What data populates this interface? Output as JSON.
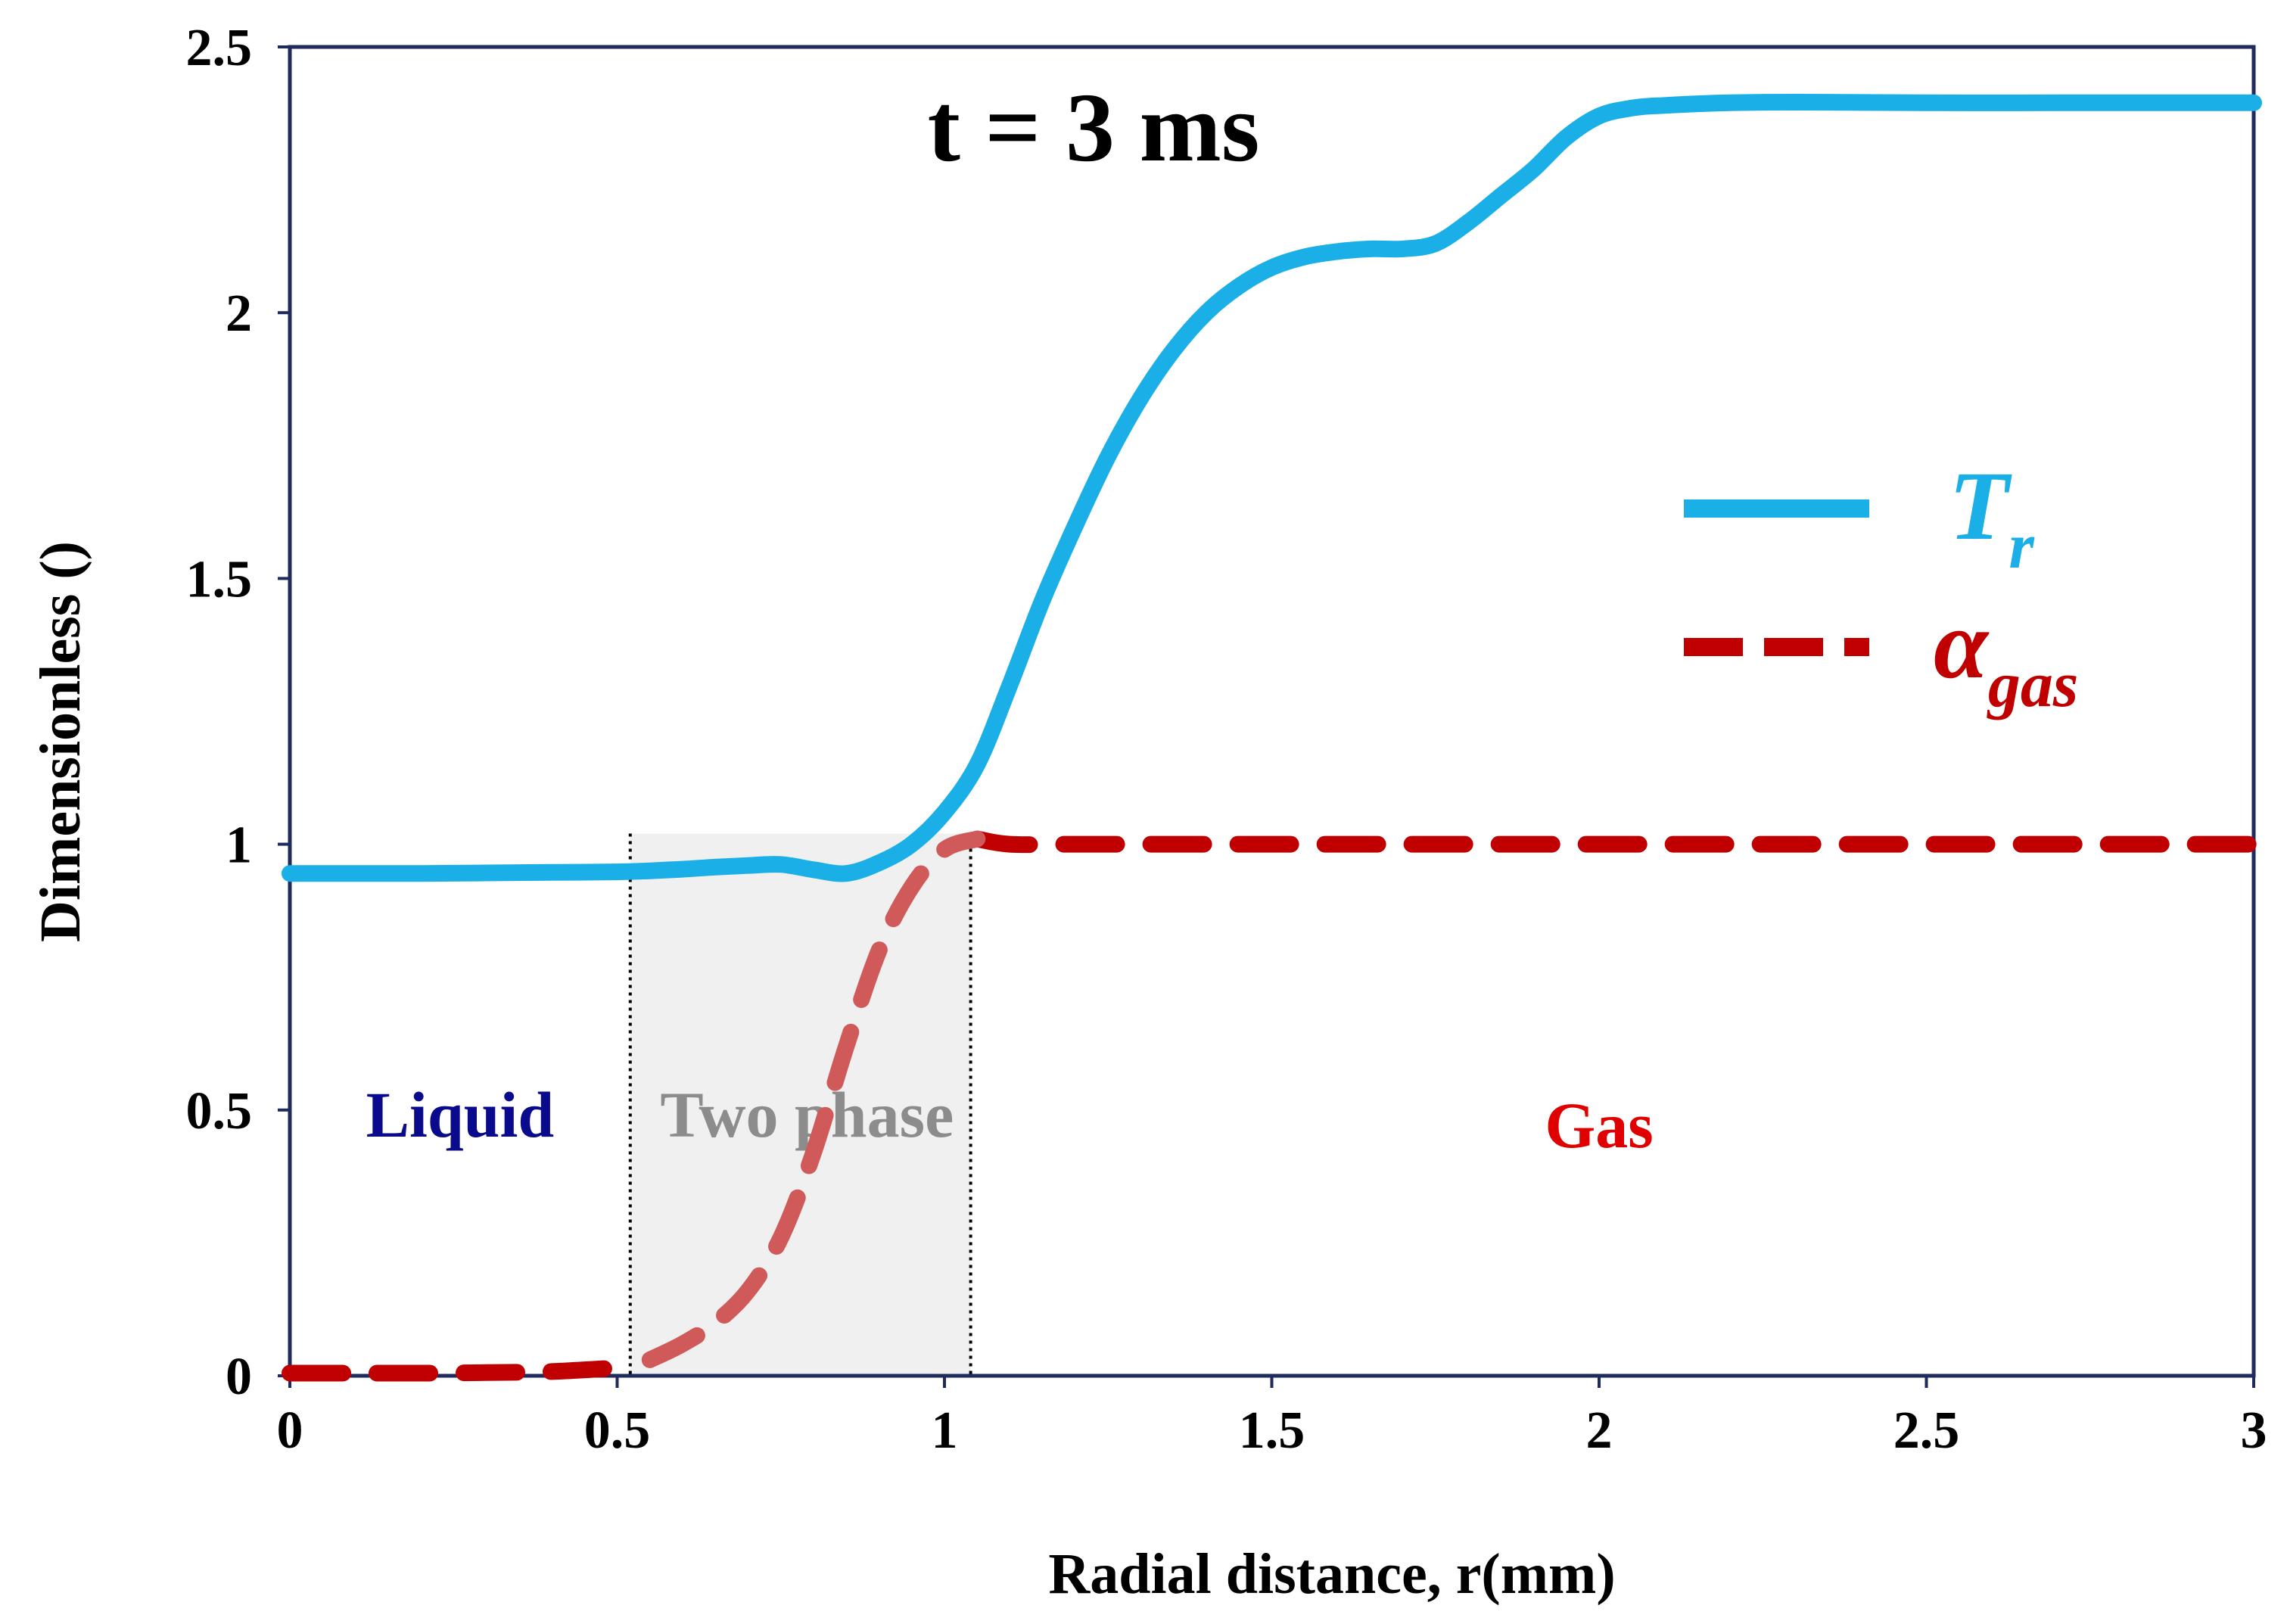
{
  "chart_data": {
    "type": "line",
    "title": "t = 3 ms",
    "xlabel": "Radial distance, r(mm)",
    "ylabel": "Dimensionless ()",
    "xlim": [
      0,
      3
    ],
    "ylim": [
      0,
      2.5
    ],
    "x_ticks": [
      "0",
      "0.5",
      "1",
      "1.5",
      "2",
      "2.5",
      "3"
    ],
    "y_ticks": [
      "0",
      "0.5",
      "1",
      "1.5",
      "2",
      "2.5"
    ],
    "grid": false,
    "legend_position": "right",
    "series": [
      {
        "name": "T_r",
        "legend_main": "T",
        "legend_sub": "r",
        "color": "#1aafe6",
        "style": "solid",
        "points": [
          [
            0,
            0.945
          ],
          [
            0.1,
            0.945
          ],
          [
            0.2,
            0.945
          ],
          [
            0.3,
            0.946
          ],
          [
            0.4,
            0.947
          ],
          [
            0.5,
            0.948
          ],
          [
            0.55,
            0.95
          ],
          [
            0.6,
            0.953
          ],
          [
            0.65,
            0.957
          ],
          [
            0.7,
            0.96
          ],
          [
            0.75,
            0.962
          ],
          [
            0.8,
            0.952
          ],
          [
            0.85,
            0.945
          ],
          [
            0.9,
            0.965
          ],
          [
            0.95,
            1.0
          ],
          [
            1.0,
            1.06
          ],
          [
            1.05,
            1.15
          ],
          [
            1.1,
            1.3
          ],
          [
            1.15,
            1.46
          ],
          [
            1.2,
            1.6
          ],
          [
            1.25,
            1.73
          ],
          [
            1.3,
            1.84
          ],
          [
            1.35,
            1.93
          ],
          [
            1.4,
            2.0
          ],
          [
            1.45,
            2.05
          ],
          [
            1.5,
            2.085
          ],
          [
            1.55,
            2.105
          ],
          [
            1.6,
            2.115
          ],
          [
            1.65,
            2.12
          ],
          [
            1.7,
            2.12
          ],
          [
            1.75,
            2.13
          ],
          [
            1.8,
            2.17
          ],
          [
            1.85,
            2.22
          ],
          [
            1.9,
            2.27
          ],
          [
            1.95,
            2.33
          ],
          [
            2.0,
            2.37
          ],
          [
            2.05,
            2.385
          ],
          [
            2.1,
            2.39
          ],
          [
            2.2,
            2.395
          ],
          [
            2.3,
            2.396
          ],
          [
            2.5,
            2.395
          ],
          [
            2.7,
            2.395
          ],
          [
            3.0,
            2.395
          ]
        ]
      },
      {
        "name": "alpha_gas",
        "legend_main": "α",
        "legend_sub": "gas",
        "color": "#c00000",
        "style": "dashed",
        "points": [
          [
            0,
            0.005
          ],
          [
            0.1,
            0.005
          ],
          [
            0.2,
            0.005
          ],
          [
            0.3,
            0.006
          ],
          [
            0.4,
            0.008
          ],
          [
            0.5,
            0.015
          ],
          [
            0.55,
            0.03
          ],
          [
            0.6,
            0.06
          ],
          [
            0.65,
            0.1
          ],
          [
            0.7,
            0.16
          ],
          [
            0.75,
            0.26
          ],
          [
            0.8,
            0.42
          ],
          [
            0.85,
            0.62
          ],
          [
            0.9,
            0.8
          ],
          [
            0.95,
            0.92
          ],
          [
            1.0,
            0.99
          ],
          [
            1.05,
            1.01
          ],
          [
            1.1,
            1.0
          ],
          [
            1.2,
            1.0
          ],
          [
            1.5,
            1.0
          ],
          [
            2.0,
            1.0
          ],
          [
            2.5,
            1.0
          ],
          [
            3.0,
            1.0
          ]
        ]
      }
    ],
    "shaded_region": {
      "label": "Two phase",
      "x_range": [
        0.52,
        1.04
      ],
      "y_range": [
        0,
        1.02
      ],
      "color": "#f0f0f0"
    },
    "annotations": [
      {
        "text": "Liquid",
        "x": 0.26,
        "y": 0.45,
        "color": "#0a0a8c"
      },
      {
        "text": "Two phase",
        "x": 0.79,
        "y": 0.45,
        "color": "#8c8c8c"
      },
      {
        "text": "Gas",
        "x": 2.0,
        "y": 0.43,
        "color": "#e00000"
      }
    ]
  }
}
